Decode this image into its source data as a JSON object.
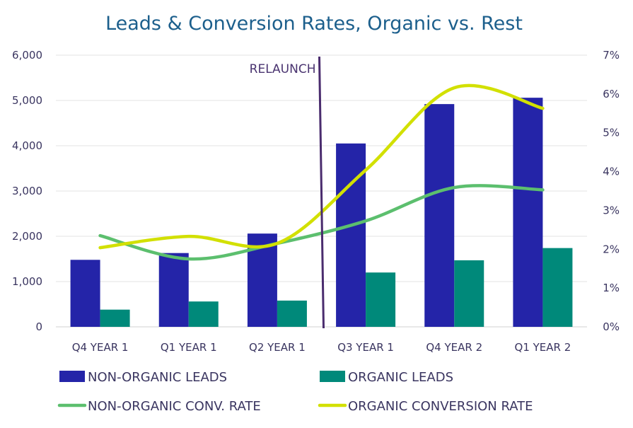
{
  "chart_data": {
    "type": "bar",
    "title": "Leads & Conversion Rates, Organic vs. Rest",
    "categories": [
      "Q4 YEAR 1",
      "Q1 YEAR 1",
      "Q2 YEAR 1",
      "Q3 YEAR 1",
      "Q4 YEAR 2",
      "Q1 YEAR 2"
    ],
    "y_left": {
      "range": [
        0,
        6000
      ],
      "ticks": [
        "0",
        "1,000",
        "2,000",
        "3,000",
        "4,000",
        "5,000",
        "6,000"
      ]
    },
    "y_right": {
      "range": [
        0,
        7
      ],
      "ticks": [
        "0%",
        "1%",
        "2%",
        "3%",
        "4%",
        "5%",
        "6%",
        "7%"
      ]
    },
    "grid": true,
    "legend_position": "bottom",
    "series": [
      {
        "name": "NON-ORGANIC LEADS",
        "type": "bar",
        "axis": "left",
        "color": "#2424a8",
        "values": [
          1480,
          1630,
          2060,
          4050,
          4920,
          5060
        ]
      },
      {
        "name": "ORGANIC LEADS",
        "type": "bar",
        "axis": "left",
        "color": "#00897a",
        "values": [
          380,
          560,
          580,
          1200,
          1470,
          1740
        ]
      },
      {
        "name": "NON-ORGANIC CONV. RATE",
        "type": "line",
        "smooth": true,
        "axis": "right",
        "unit": "%",
        "color": "#5cbf6e",
        "values": [
          2.35,
          1.75,
          2.15,
          2.73,
          3.59,
          3.53
        ]
      },
      {
        "name": "ORGANIC CONVERSION RATE",
        "type": "line",
        "smooth": true,
        "axis": "right",
        "unit": "%",
        "color": "#d2e000",
        "values": [
          2.04,
          2.33,
          2.15,
          4.04,
          6.16,
          5.63
        ]
      }
    ],
    "annotation": {
      "text": "RELAUNCH",
      "between": [
        "Q2 YEAR 1",
        "Q3 YEAR 1"
      ],
      "color": "#4a2c6e"
    }
  }
}
